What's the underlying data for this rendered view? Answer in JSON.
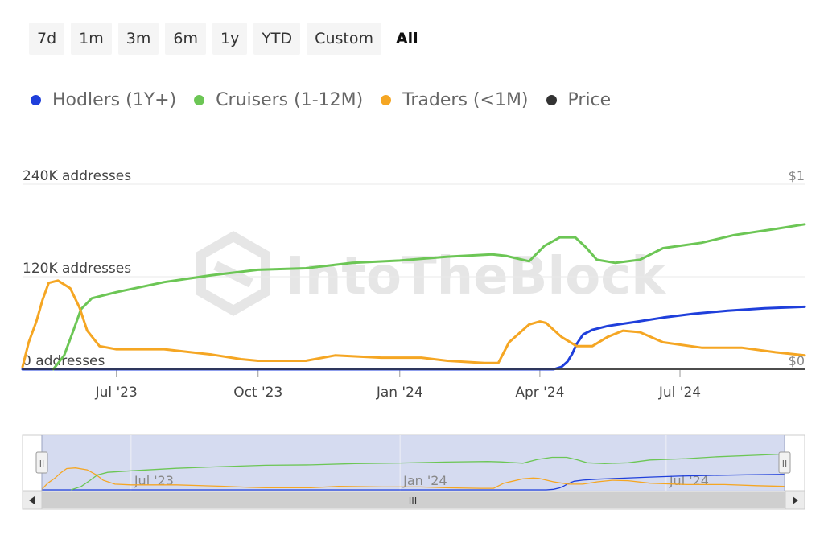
{
  "range_selector": {
    "buttons": [
      {
        "label": "7d"
      },
      {
        "label": "1m"
      },
      {
        "label": "3m"
      },
      {
        "label": "6m"
      },
      {
        "label": "1y"
      },
      {
        "label": "YTD"
      },
      {
        "label": "Custom"
      },
      {
        "label": "All",
        "active": true
      }
    ]
  },
  "watermark": "IntoTheBlock",
  "navigator": {
    "x_ticks": [
      "Jul '23",
      "Jan '24",
      "Jul '24"
    ],
    "scroll_grip": "III",
    "left_handle": "II",
    "right_handle": "II"
  },
  "icons": {
    "scroll_left": "triangle-left-icon",
    "scroll_right": "triangle-right-icon"
  },
  "chart_data": {
    "type": "line",
    "x_range": [
      "2023-05-01",
      "2024-09-20"
    ],
    "x_ticks": [
      {
        "date": "2023-07-01",
        "label": "Jul '23"
      },
      {
        "date": "2023-10-01",
        "label": "Oct '23"
      },
      {
        "date": "2024-01-01",
        "label": "Jan '24"
      },
      {
        "date": "2024-04-01",
        "label": "Apr '24"
      },
      {
        "date": "2024-07-01",
        "label": "Jul '24"
      }
    ],
    "y_left": {
      "ticks": [
        0,
        120000,
        240000
      ],
      "tick_labels": [
        "0 addresses",
        "120K addresses",
        "240K addresses"
      ],
      "range": [
        0,
        240000
      ]
    },
    "y_right": {
      "tick_labels": [
        "$0",
        "$1"
      ]
    },
    "legend_placement": "top-left",
    "grid": true,
    "series": [
      {
        "name": "Hodlers (1Y+)",
        "color": "#1f3fdb",
        "points": [
          [
            "2023-05-01",
            0
          ],
          [
            "2024-04-10",
            0
          ],
          [
            "2024-04-15",
            3000
          ],
          [
            "2024-04-19",
            10000
          ],
          [
            "2024-04-22",
            20000
          ],
          [
            "2024-04-25",
            33000
          ],
          [
            "2024-04-29",
            45000
          ],
          [
            "2024-05-05",
            51000
          ],
          [
            "2024-05-15",
            56000
          ],
          [
            "2024-06-01",
            61000
          ],
          [
            "2024-06-20",
            67000
          ],
          [
            "2024-07-10",
            72000
          ],
          [
            "2024-08-01",
            76000
          ],
          [
            "2024-08-25",
            79000
          ],
          [
            "2024-09-20",
            81000
          ]
        ]
      },
      {
        "name": "Cruisers (1-12M)",
        "color": "#6cc655",
        "points": [
          [
            "2023-05-21",
            0
          ],
          [
            "2023-05-28",
            18000
          ],
          [
            "2023-06-03",
            50000
          ],
          [
            "2023-06-08",
            78000
          ],
          [
            "2023-06-15",
            92000
          ],
          [
            "2023-07-01",
            100000
          ],
          [
            "2023-08-01",
            113000
          ],
          [
            "2023-09-01",
            122000
          ],
          [
            "2023-10-01",
            129000
          ],
          [
            "2023-11-01",
            131000
          ],
          [
            "2023-12-01",
            138000
          ],
          [
            "2024-01-01",
            141000
          ],
          [
            "2024-02-01",
            146000
          ],
          [
            "2024-03-01",
            149000
          ],
          [
            "2024-03-10",
            147000
          ],
          [
            "2024-03-25",
            140000
          ],
          [
            "2024-04-04",
            160000
          ],
          [
            "2024-04-14",
            171000
          ],
          [
            "2024-04-24",
            171000
          ],
          [
            "2024-05-01",
            158000
          ],
          [
            "2024-05-08",
            142000
          ],
          [
            "2024-05-20",
            138000
          ],
          [
            "2024-06-05",
            142000
          ],
          [
            "2024-06-20",
            157000
          ],
          [
            "2024-07-15",
            164000
          ],
          [
            "2024-08-05",
            174000
          ],
          [
            "2024-09-01",
            182000
          ],
          [
            "2024-09-20",
            188000
          ]
        ]
      },
      {
        "name": "Traders (<1M)",
        "color": "#f5a623",
        "points": [
          [
            "2023-05-01",
            3000
          ],
          [
            "2023-05-05",
            35000
          ],
          [
            "2023-05-10",
            62000
          ],
          [
            "2023-05-14",
            90000
          ],
          [
            "2023-05-18",
            112000
          ],
          [
            "2023-05-24",
            115000
          ],
          [
            "2023-06-01",
            105000
          ],
          [
            "2023-06-07",
            80000
          ],
          [
            "2023-06-12",
            50000
          ],
          [
            "2023-06-20",
            30000
          ],
          [
            "2023-07-01",
            26000
          ],
          [
            "2023-08-01",
            26000
          ],
          [
            "2023-09-01",
            19000
          ],
          [
            "2023-09-20",
            13000
          ],
          [
            "2023-10-01",
            11000
          ],
          [
            "2023-11-01",
            11000
          ],
          [
            "2023-11-20",
            18000
          ],
          [
            "2023-12-20",
            15000
          ],
          [
            "2024-01-15",
            15000
          ],
          [
            "2024-02-01",
            11000
          ],
          [
            "2024-02-25",
            8000
          ],
          [
            "2024-03-05",
            8000
          ],
          [
            "2024-03-12",
            35000
          ],
          [
            "2024-03-25",
            58000
          ],
          [
            "2024-04-01",
            62000
          ],
          [
            "2024-04-05",
            60000
          ],
          [
            "2024-04-15",
            42000
          ],
          [
            "2024-04-25",
            30000
          ],
          [
            "2024-05-05",
            30000
          ],
          [
            "2024-05-15",
            42000
          ],
          [
            "2024-05-25",
            50000
          ],
          [
            "2024-06-05",
            48000
          ],
          [
            "2024-06-20",
            35000
          ],
          [
            "2024-07-15",
            28000
          ],
          [
            "2024-08-10",
            28000
          ],
          [
            "2024-09-01",
            22000
          ],
          [
            "2024-09-20",
            18000
          ]
        ]
      },
      {
        "name": "Price",
        "color": "#333333",
        "points": [
          [
            "2023-05-01",
            0
          ],
          [
            "2024-09-20",
            0
          ]
        ]
      }
    ]
  }
}
